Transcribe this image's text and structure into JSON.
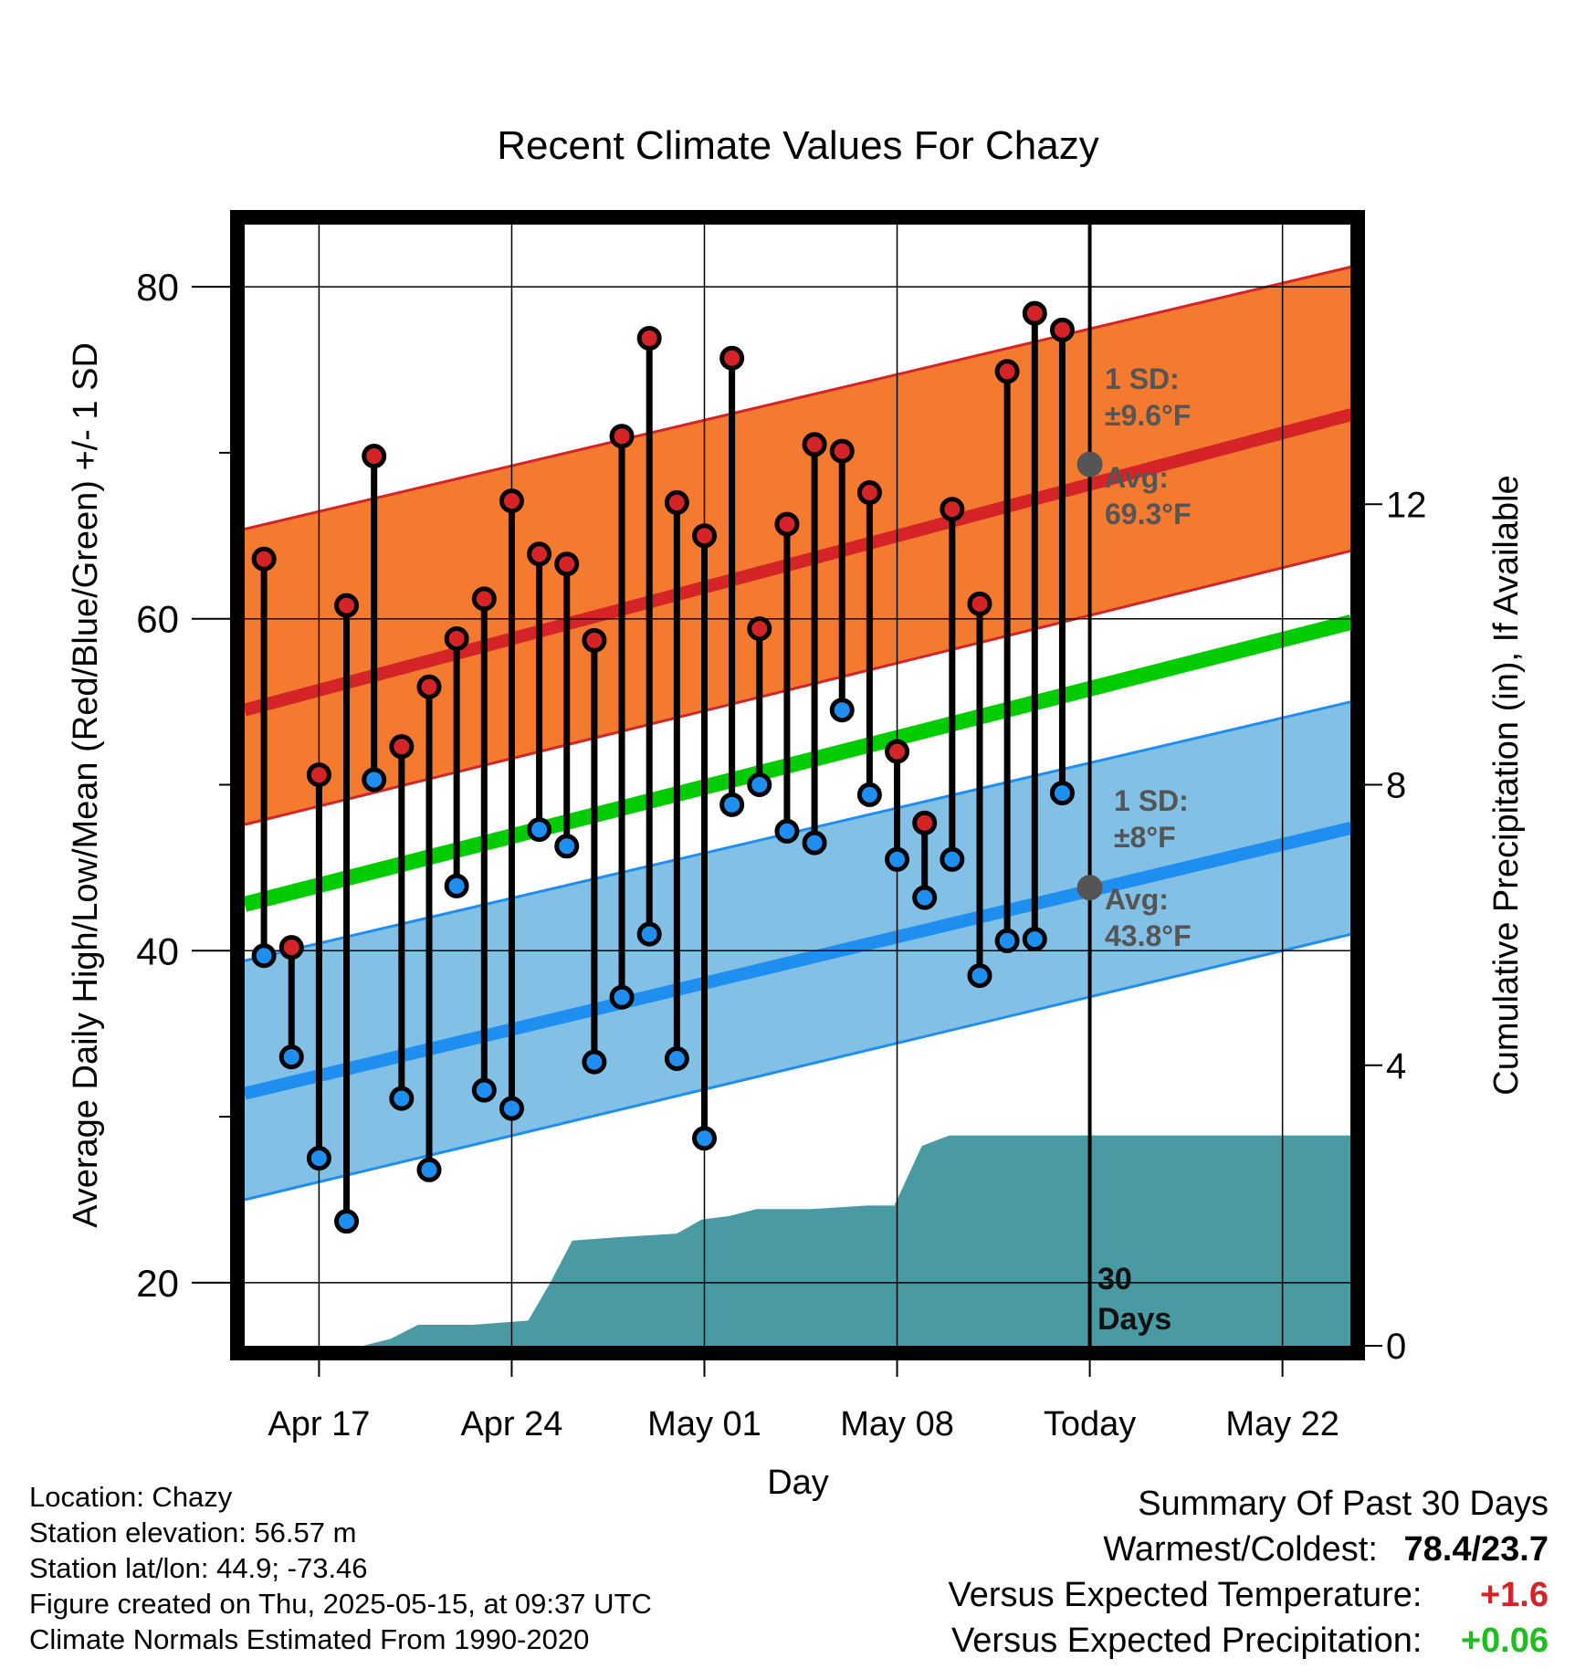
{
  "title": "Recent Climate Values For Chazy",
  "xlabel": "Day",
  "ylabel_left": "Average Daily High/Low/Mean (Red/Blue/Green) +/- 1 SD",
  "ylabel_right": "Cumulative Precipitation (in), If Available",
  "colors": {
    "high_band": "#f47a30",
    "high_line": "#d42427",
    "low_band": "#82c0e6",
    "low_line": "#1e8ef0",
    "mean_line": "#00cc00",
    "precip": "#4a9aa3",
    "annotation": "#555555",
    "warm_text": "#d42427",
    "precip_text": "#22bb22"
  },
  "annotations": {
    "high_sd_label": "1 SD:",
    "high_sd_value": "±9.6°F",
    "high_avg_label": "Avg:",
    "high_avg_value": "69.3°F",
    "low_sd_label": "1 SD:",
    "low_sd_value": "±8°F",
    "low_avg_label": "Avg:",
    "low_avg_value": "43.8°F",
    "days_num": "30",
    "days_label": "Days"
  },
  "info": {
    "location": "Location: Chazy",
    "elevation": "Station elevation: 56.57 m",
    "latlon": "Station lat/lon: 44.9; -73.46",
    "created": "Figure created on Thu, 2025-05-15, at 09:37 UTC",
    "normals": "Climate Normals Estimated From 1990-2020"
  },
  "summary": {
    "title": "Summary Of Past 30 Days",
    "warm_cold_label": "Warmest/Coldest:",
    "warm_value": "78.4",
    "slash": "/",
    "cold_value": "23.7",
    "temp_label": "Versus Expected Temperature:",
    "temp_value": "+1.6",
    "precip_label": "Versus Expected Precipitation:",
    "precip_value": "+0.06"
  },
  "chart_data": {
    "type": "line",
    "x_ticks": [
      "Apr 17",
      "Apr 24",
      "May 01",
      "May 08",
      "Today",
      "May 22"
    ],
    "x_tick_days": [
      2,
      9,
      16,
      23,
      30,
      37
    ],
    "x_range_days": [
      -0.7,
      39.5
    ],
    "y_left_ticks": [
      20,
      40,
      60,
      80
    ],
    "y_left_minor_ticks": [
      30,
      50,
      70
    ],
    "y_left_range": [
      16.2,
      83.8
    ],
    "y_right_ticks": [
      0,
      4,
      8,
      12
    ],
    "y_right_range": [
      0,
      16
    ],
    "today_day": 30,
    "normals": {
      "days": [
        -0.7,
        39.5
      ],
      "high_avg": [
        54.5,
        72.3
      ],
      "high_upper": [
        65.4,
        81.2
      ],
      "high_lower": [
        47.6,
        64.1
      ],
      "mean": [
        42.8,
        59.8
      ],
      "low_avg": [
        31.4,
        47.4
      ],
      "low_upper": [
        39.4,
        55.0
      ],
      "low_lower": [
        25.0,
        41.0
      ],
      "today_high_avg": 69.3,
      "today_low_avg": 43.8
    },
    "daily": {
      "days": [
        0,
        1,
        2,
        3,
        4,
        5,
        6,
        7,
        8,
        9,
        10,
        11,
        12,
        13,
        14,
        15,
        16,
        17,
        18,
        19,
        20,
        21,
        22,
        23,
        24,
        25,
        26,
        27,
        28,
        29
      ],
      "highs": [
        63.6,
        40.2,
        50.6,
        60.8,
        69.8,
        52.3,
        55.9,
        58.8,
        61.2,
        67.1,
        63.9,
        63.3,
        58.7,
        71.0,
        76.9,
        67.0,
        65.0,
        75.7,
        59.4,
        65.7,
        70.5,
        70.1,
        67.6,
        52.0,
        47.7,
        66.6,
        60.9,
        74.9,
        78.4,
        77.4
      ],
      "lows": [
        39.7,
        33.6,
        27.5,
        23.7,
        50.3,
        31.1,
        26.8,
        43.9,
        31.6,
        30.5,
        47.3,
        46.3,
        33.3,
        37.2,
        41.0,
        33.5,
        28.7,
        48.8,
        50.0,
        47.2,
        46.5,
        54.5,
        49.4,
        45.5,
        43.2,
        45.5,
        38.5,
        40.6,
        40.7,
        49.5
      ]
    },
    "precipitation": {
      "days": [
        -0.7,
        3.6,
        4.6,
        5.6,
        7.6,
        9.6,
        10.4,
        11.2,
        11.9,
        12.9,
        15.0,
        15.9,
        16.9,
        17.9,
        18.9,
        19.9,
        21.9,
        22.9,
        23.9,
        24.9,
        29.9,
        39.5
      ],
      "cumulative_in": [
        0,
        0,
        0.1,
        0.3,
        0.3,
        0.36,
        0.9,
        1.5,
        1.52,
        1.55,
        1.6,
        1.8,
        1.85,
        1.95,
        1.95,
        1.95,
        2.0,
        2.0,
        2.85,
        3.0,
        3.0,
        3.0
      ]
    }
  }
}
